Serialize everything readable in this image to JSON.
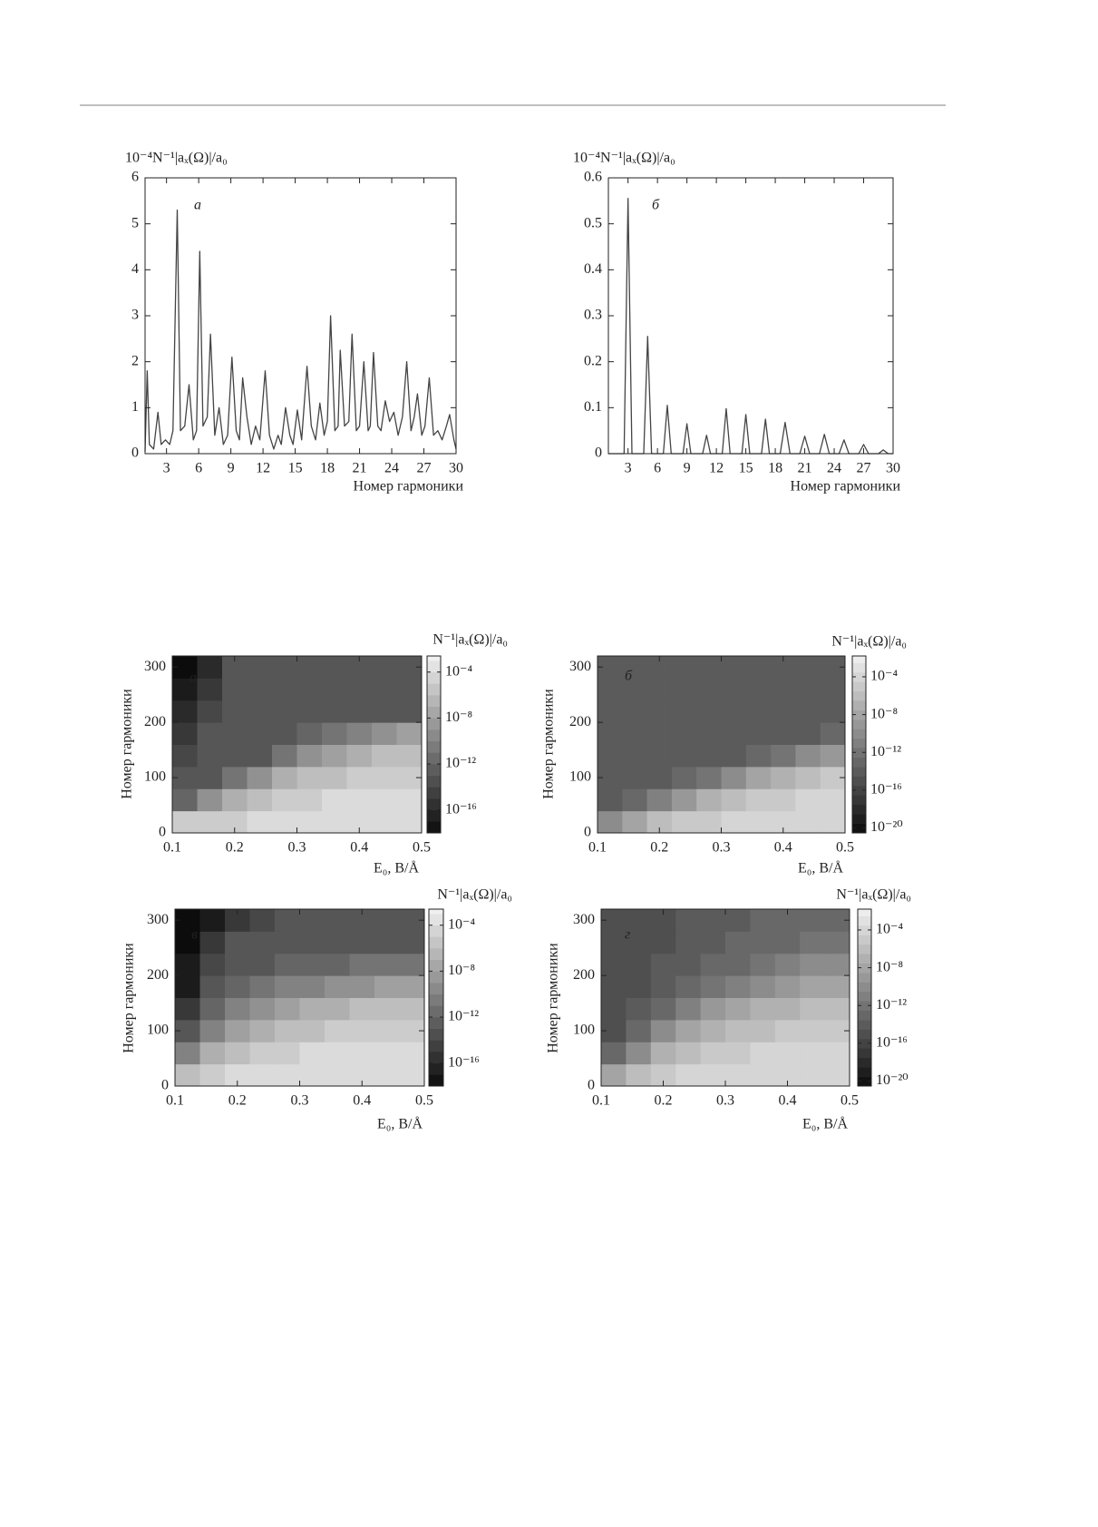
{
  "chart_data": [
    {
      "type": "line",
      "y_label": "10⁻⁴N⁻¹|aₓ(Ω)|/a₀",
      "x_label": "Номер гармоники",
      "panel_label": "а",
      "color": "#444444",
      "xlim": [
        1,
        30
      ],
      "ylim": [
        0,
        6
      ],
      "xticks": [
        3,
        6,
        9,
        12,
        15,
        18,
        21,
        24,
        27,
        30
      ],
      "yticks": [
        0,
        1,
        2,
        3,
        4,
        5,
        6
      ],
      "x": [
        1,
        1.2,
        1.4,
        1.8,
        2.2,
        2.5,
        2.9,
        3.3,
        3.6,
        4.0,
        4.3,
        4.7,
        5.1,
        5.5,
        5.8,
        6.1,
        6.4,
        6.8,
        7.1,
        7.5,
        7.9,
        8.3,
        8.7,
        9.1,
        9.5,
        9.8,
        10.1,
        10.5,
        10.9,
        11.3,
        11.7,
        12.2,
        12.6,
        13.0,
        13.4,
        13.7,
        14.1,
        14.5,
        14.8,
        15.2,
        15.6,
        16.1,
        16.5,
        16.9,
        17.3,
        17.7,
        18.0,
        18.3,
        18.7,
        19.0,
        19.2,
        19.6,
        20.0,
        20.3,
        20.7,
        21.0,
        21.4,
        21.8,
        22.0,
        22.3,
        22.7,
        23.0,
        23.4,
        23.8,
        24.2,
        24.6,
        25.0,
        25.4,
        25.8,
        26.1,
        26.4,
        26.8,
        27.1,
        27.5,
        27.9,
        28.3,
        28.7,
        29.1,
        29.4,
        29.8,
        30
      ],
      "values": [
        0.05,
        1.8,
        0.2,
        0.1,
        0.9,
        0.2,
        0.3,
        0.2,
        0.5,
        5.3,
        0.5,
        0.6,
        1.5,
        0.3,
        0.5,
        4.4,
        0.6,
        0.8,
        2.6,
        0.4,
        1.0,
        0.2,
        0.4,
        2.1,
        0.5,
        0.3,
        1.65,
        0.8,
        0.2,
        0.6,
        0.3,
        1.8,
        0.4,
        0.1,
        0.4,
        0.2,
        1.0,
        0.4,
        0.2,
        0.95,
        0.3,
        1.9,
        0.6,
        0.3,
        1.1,
        0.4,
        0.7,
        3.0,
        0.5,
        0.6,
        2.25,
        0.6,
        0.7,
        2.6,
        0.5,
        0.6,
        2.0,
        0.5,
        0.6,
        2.2,
        0.6,
        0.5,
        1.15,
        0.7,
        0.9,
        0.4,
        0.8,
        2.0,
        0.5,
        0.8,
        1.3,
        0.4,
        0.6,
        1.65,
        0.4,
        0.5,
        0.3,
        0.6,
        0.85,
        0.3,
        0.1
      ]
    },
    {
      "type": "line",
      "y_label": "10⁻⁴N⁻¹|aₓ(Ω)|/a₀",
      "x_label": "Номер гармоники",
      "panel_label": "б",
      "color": "#444444",
      "xlim": [
        1,
        30
      ],
      "ylim": [
        0,
        0.6
      ],
      "xticks": [
        3,
        6,
        9,
        12,
        15,
        18,
        21,
        24,
        27,
        30
      ],
      "yticks": [
        0,
        0.1,
        0.2,
        0.3,
        0.4,
        0.5,
        0.6
      ],
      "x": [
        1,
        2.6,
        3,
        3.4,
        4.6,
        5,
        5.4,
        6.6,
        7,
        7.4,
        8.6,
        9,
        9.4,
        10.6,
        11,
        11.4,
        12.6,
        13,
        13.4,
        14.6,
        15,
        15.4,
        16.6,
        17,
        17.4,
        18.5,
        19,
        19.5,
        20.5,
        21,
        21.5,
        22.5,
        23,
        23.5,
        24.5,
        25,
        25.5,
        26.5,
        27,
        27.5,
        28.5,
        29,
        29.5,
        30
      ],
      "values": [
        0,
        0,
        0.555,
        0,
        0,
        0.255,
        0,
        0,
        0.105,
        0,
        0,
        0.065,
        0,
        0,
        0.04,
        0,
        0,
        0.098,
        0,
        0,
        0.085,
        0,
        0,
        0.075,
        0,
        0,
        0.068,
        0,
        0,
        0.038,
        0,
        0,
        0.042,
        0,
        0,
        0.03,
        0,
        0,
        0.02,
        0,
        0,
        0.008,
        0,
        0
      ]
    },
    {
      "type": "heatmap",
      "y_label": "Номер гармоники",
      "x_label": "E₀, В/Å",
      "colorbar_label": "N⁻¹|aₓ(Ω)|/a₀",
      "panel_label": "а",
      "log_z": true,
      "xlim": [
        0.1,
        0.5
      ],
      "ylim": [
        0,
        320
      ],
      "xticks": [
        0.1,
        0.2,
        0.3,
        0.4,
        0.5
      ],
      "yticks": [
        0,
        100,
        200,
        300
      ],
      "zlim": [
        1e-18,
        0.0025
      ],
      "zticks": [
        {
          "value": 0.0001,
          "label": "10⁻⁴"
        },
        {
          "value": 1e-08,
          "label": "10⁻⁸"
        },
        {
          "value": 1e-12,
          "label": "10⁻¹²"
        },
        {
          "value": 1e-16,
          "label": "10⁻¹⁶"
        }
      ],
      "x": [
        0.12,
        0.16,
        0.2,
        0.24,
        0.28,
        0.32,
        0.36,
        0.4,
        0.44,
        0.48
      ],
      "y": [
        20,
        60,
        100,
        140,
        180,
        220,
        260,
        300
      ],
      "z": [
        [
          1e-05,
          1e-05,
          1e-05,
          0.0001,
          0.0001,
          0.0001,
          0.0001,
          0.0001,
          0.0001,
          0.0001
        ],
        [
          1e-12,
          1e-09,
          1e-07,
          1e-06,
          1e-05,
          1e-05,
          0.0001,
          0.0001,
          0.0001,
          0.0001
        ],
        [
          1e-13,
          1e-13,
          1e-11,
          1e-09,
          1e-07,
          1e-06,
          1e-06,
          1e-05,
          1e-05,
          1e-05
        ],
        [
          1e-14,
          1e-13,
          1e-13,
          1e-13,
          1e-11,
          1e-09,
          1e-08,
          1e-07,
          1e-06,
          1e-06
        ],
        [
          1e-15,
          1e-13,
          1e-13,
          1e-13,
          1e-13,
          1e-12,
          1e-11,
          1e-10,
          1e-09,
          1e-08
        ],
        [
          1e-16,
          1e-14,
          1e-13,
          1e-13,
          1e-13,
          1e-13,
          1e-13,
          1e-13,
          1e-13,
          1e-13
        ],
        [
          1e-17,
          1e-15,
          1e-13,
          1e-13,
          1e-13,
          1e-13,
          1e-13,
          1e-13,
          1e-13,
          1e-13
        ],
        [
          1e-18,
          1e-16,
          1e-13,
          1e-13,
          1e-13,
          1e-13,
          1e-13,
          1e-13,
          1e-13,
          1e-13
        ]
      ]
    },
    {
      "type": "heatmap",
      "y_label": "Номер гармоники",
      "x_label": "E₀, В/Å",
      "colorbar_label": "N⁻¹|aₓ(Ω)|/a₀",
      "panel_label": "б",
      "log_z": true,
      "xlim": [
        0.1,
        0.5
      ],
      "ylim": [
        0,
        320
      ],
      "xticks": [
        0.1,
        0.2,
        0.3,
        0.4,
        0.5
      ],
      "yticks": [
        0,
        100,
        200,
        300
      ],
      "zlim": [
        3e-21,
        0.016
      ],
      "zticks": [
        {
          "value": 0.0001,
          "label": "10⁻⁴"
        },
        {
          "value": 1e-08,
          "label": "10⁻⁸"
        },
        {
          "value": 1e-12,
          "label": "10⁻¹²"
        },
        {
          "value": 1e-16,
          "label": "10⁻¹⁶"
        },
        {
          "value": 1e-20,
          "label": "10⁻²⁰"
        }
      ],
      "x": [
        0.12,
        0.16,
        0.2,
        0.24,
        0.28,
        0.32,
        0.36,
        0.4,
        0.44,
        0.48
      ],
      "y": [
        20,
        60,
        100,
        140,
        180,
        220,
        260,
        300
      ],
      "z": [
        [
          1e-10,
          1e-08,
          1e-06,
          1e-05,
          1e-05,
          0.0001,
          0.0001,
          0.0001,
          0.0001,
          0.0001
        ],
        [
          1e-14,
          1e-13,
          1e-11,
          1e-09,
          1e-07,
          1e-06,
          1e-05,
          1e-05,
          0.0001,
          0.0001
        ],
        [
          1e-14,
          1e-14,
          1e-14,
          1e-13,
          1e-12,
          1e-10,
          1e-08,
          1e-07,
          1e-06,
          1e-05
        ],
        [
          1e-14,
          1e-14,
          1e-14,
          1e-14,
          1e-14,
          1e-14,
          1e-13,
          1e-12,
          1e-10,
          1e-09
        ],
        [
          1e-14,
          1e-14,
          1e-14,
          1e-14,
          1e-14,
          1e-14,
          1e-14,
          1e-14,
          1e-14,
          1e-13
        ],
        [
          1e-14,
          1e-14,
          1e-14,
          1e-14,
          1e-14,
          1e-14,
          1e-14,
          1e-14,
          1e-14,
          1e-14
        ],
        [
          1e-14,
          1e-14,
          1e-14,
          1e-14,
          1e-14,
          1e-14,
          1e-14,
          1e-14,
          1e-14,
          1e-14
        ],
        [
          1e-14,
          1e-14,
          1e-14,
          1e-14,
          1e-14,
          1e-14,
          1e-14,
          1e-14,
          1e-14,
          1e-14
        ]
      ]
    },
    {
      "type": "heatmap",
      "y_label": "Номер гармоники",
      "x_label": "E₀, В/Å",
      "colorbar_label": "N⁻¹|aₓ(Ω)|/a₀",
      "panel_label": "в",
      "log_z": true,
      "xlim": [
        0.1,
        0.5
      ],
      "ylim": [
        0,
        320
      ],
      "xticks": [
        0.1,
        0.2,
        0.3,
        0.4,
        0.5
      ],
      "yticks": [
        0,
        100,
        200,
        300
      ],
      "zlim": [
        1e-18,
        0.0025
      ],
      "zticks": [
        {
          "value": 0.0001,
          "label": "10⁻⁴"
        },
        {
          "value": 1e-08,
          "label": "10⁻⁸"
        },
        {
          "value": 1e-12,
          "label": "10⁻¹²"
        },
        {
          "value": 1e-16,
          "label": "10⁻¹⁶"
        }
      ],
      "x": [
        0.12,
        0.16,
        0.2,
        0.24,
        0.28,
        0.32,
        0.36,
        0.4,
        0.44,
        0.48
      ],
      "y": [
        20,
        60,
        100,
        140,
        180,
        220,
        260,
        300
      ],
      "z": [
        [
          1e-06,
          1e-05,
          0.0001,
          0.0001,
          0.0001,
          0.0001,
          0.0001,
          0.0001,
          0.0001,
          0.0001
        ],
        [
          1e-10,
          1e-07,
          1e-06,
          1e-05,
          1e-05,
          0.0001,
          0.0001,
          0.0001,
          0.0001,
          0.0001
        ],
        [
          1e-13,
          1e-10,
          1e-08,
          1e-07,
          1e-06,
          1e-06,
          1e-05,
          1e-05,
          1e-05,
          1e-05
        ],
        [
          1e-15,
          1e-12,
          1e-10,
          1e-09,
          1e-08,
          1e-07,
          1e-07,
          1e-06,
          1e-06,
          1e-06
        ],
        [
          1e-17,
          1e-13,
          1e-12,
          1e-11,
          1e-10,
          1e-10,
          1e-09,
          1e-09,
          1e-08,
          1e-08
        ],
        [
          1e-17,
          1e-14,
          1e-13,
          1e-13,
          1e-12,
          1e-12,
          1e-12,
          1e-11,
          1e-11,
          1e-11
        ],
        [
          1e-18,
          1e-15,
          1e-13,
          1e-13,
          1e-13,
          1e-13,
          1e-13,
          1e-13,
          1e-13,
          1e-13
        ],
        [
          1e-18,
          1e-17,
          1e-15,
          1e-14,
          1e-13,
          1e-13,
          1e-13,
          1e-13,
          1e-13,
          1e-13
        ]
      ]
    },
    {
      "type": "heatmap",
      "y_label": "Номер гармоники",
      "x_label": "E₀, В/Å",
      "colorbar_label": "N⁻¹|aₓ(Ω)|/a₀",
      "panel_label": "г",
      "log_z": true,
      "xlim": [
        0.1,
        0.5
      ],
      "ylim": [
        0,
        320
      ],
      "xticks": [
        0.1,
        0.2,
        0.3,
        0.4,
        0.5
      ],
      "yticks": [
        0,
        100,
        200,
        300
      ],
      "zlim": [
        3e-21,
        0.016
      ],
      "zticks": [
        {
          "value": 0.0001,
          "label": "10⁻⁴"
        },
        {
          "value": 1e-08,
          "label": "10⁻⁸"
        },
        {
          "value": 1e-12,
          "label": "10⁻¹²"
        },
        {
          "value": 1e-16,
          "label": "10⁻¹⁶"
        },
        {
          "value": 1e-20,
          "label": "10⁻²⁰"
        }
      ],
      "x": [
        0.12,
        0.16,
        0.2,
        0.24,
        0.28,
        0.32,
        0.36,
        0.4,
        0.44,
        0.48
      ],
      "y": [
        20,
        60,
        100,
        140,
        180,
        220,
        260,
        300
      ],
      "z": [
        [
          1e-08,
          1e-06,
          1e-05,
          0.0001,
          0.0001,
          0.0001,
          0.0001,
          0.0001,
          0.0001,
          0.0001
        ],
        [
          1e-13,
          1e-10,
          1e-07,
          1e-06,
          1e-05,
          1e-05,
          0.0001,
          0.0001,
          0.0001,
          0.0001
        ],
        [
          1e-15,
          1e-13,
          1e-10,
          1e-08,
          1e-07,
          1e-06,
          1e-06,
          1e-05,
          1e-05,
          1e-05
        ],
        [
          1e-15,
          1e-14,
          1e-13,
          1e-11,
          1e-09,
          1e-08,
          1e-07,
          1e-07,
          1e-06,
          1e-06
        ],
        [
          1e-15,
          1e-15,
          1e-14,
          1e-13,
          1e-12,
          1e-11,
          1e-10,
          1e-09,
          1e-08,
          1e-08
        ],
        [
          1e-15,
          1e-15,
          1e-14,
          1e-14,
          1e-13,
          1e-13,
          1e-12,
          1e-11,
          1e-10,
          1e-10
        ],
        [
          1e-15,
          1e-15,
          1e-15,
          1e-14,
          1e-14,
          1e-13,
          1e-13,
          1e-13,
          1e-12,
          1e-12
        ],
        [
          1e-15,
          1e-15,
          1e-15,
          1e-14,
          1e-14,
          1e-14,
          1e-13,
          1e-13,
          1e-13,
          1e-13
        ]
      ]
    }
  ]
}
